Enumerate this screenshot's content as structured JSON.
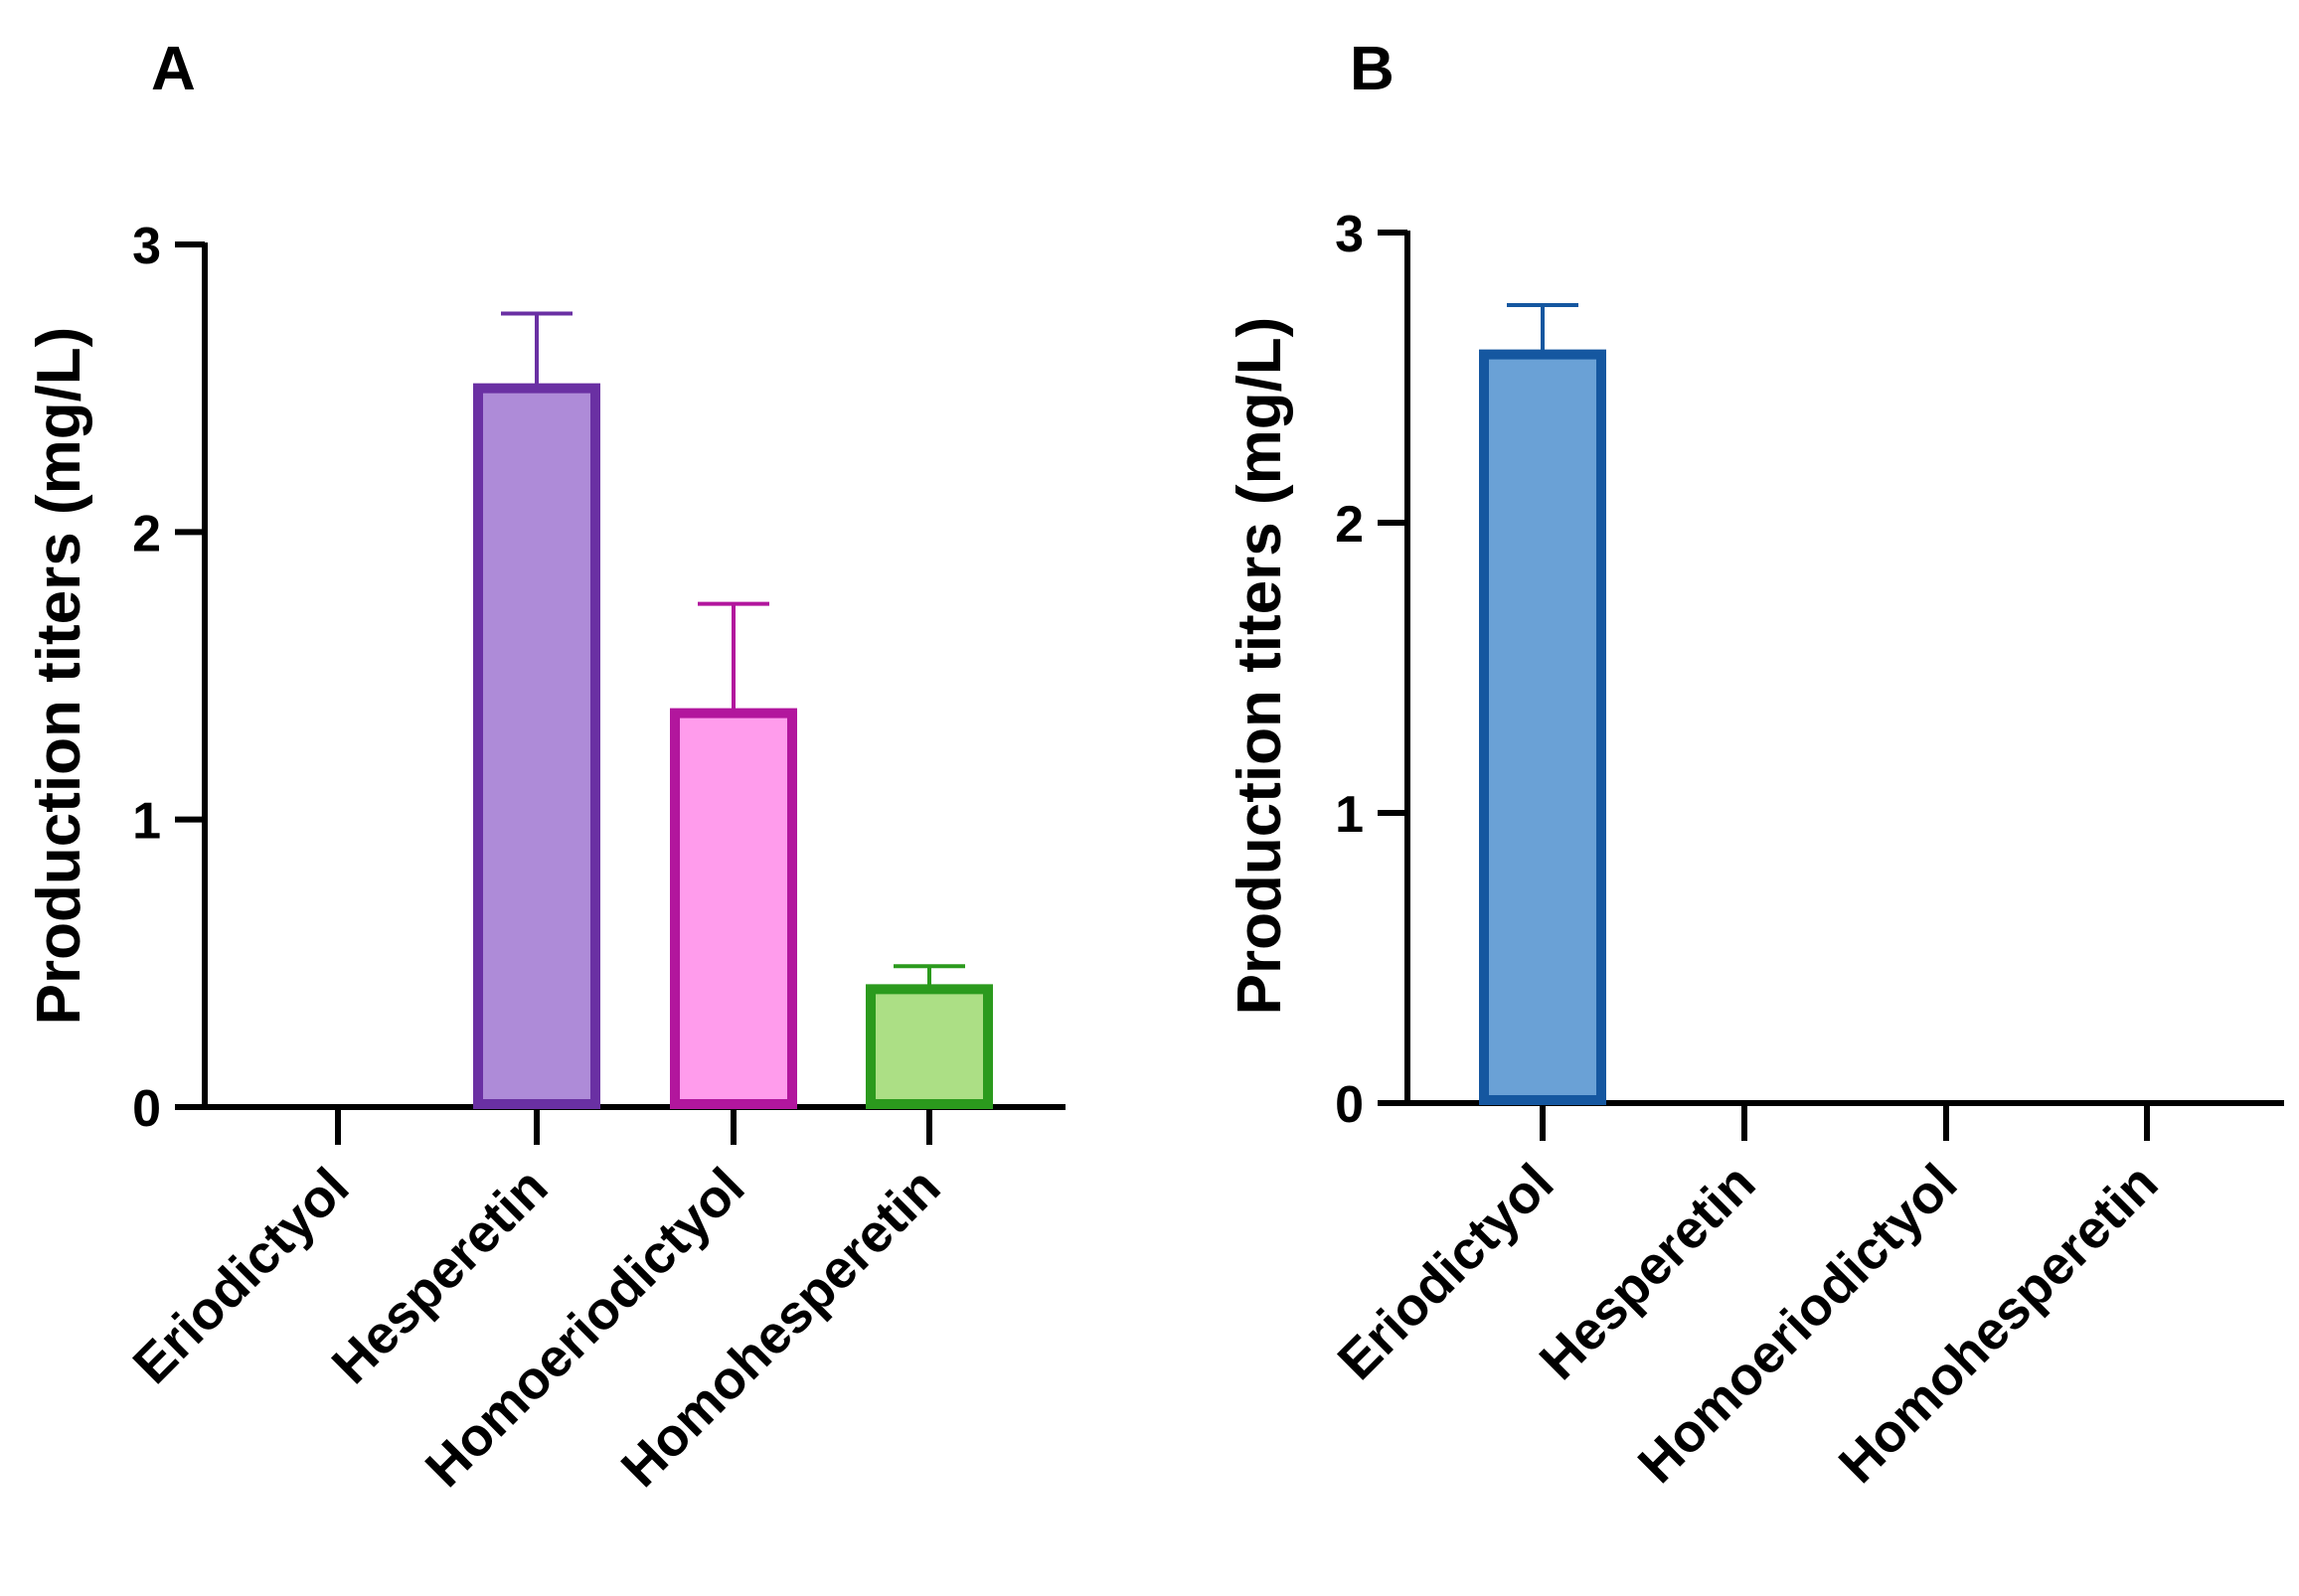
{
  "chart_data": [
    {
      "panel": "A",
      "type": "bar",
      "title": "",
      "xlabel": "",
      "ylabel": "Production titers (mg/L)",
      "ylim": [
        0,
        3
      ],
      "yticks": [
        "0",
        "1",
        "2",
        "3"
      ],
      "categories": [
        "Eriodictyol",
        "Hesperetin",
        "Homoeriodictyol",
        "Homohesperetin"
      ],
      "values": [
        0,
        2.5,
        1.37,
        0.41
      ],
      "errors": [
        0,
        0.26,
        0.38,
        0.08
      ],
      "fill_colors": [
        "#ffffff",
        "#ae8bd8",
        "#ff9cec",
        "#acdf85"
      ],
      "edge_colors": [
        "#000000",
        "#6a30a3",
        "#b2169d",
        "#2b9a1d"
      ],
      "grid": false
    },
    {
      "panel": "B",
      "type": "bar",
      "title": "",
      "xlabel": "",
      "ylabel": "Production titers (mg/L)",
      "ylim": [
        0,
        3
      ],
      "yticks": [
        "0",
        "1",
        "2",
        "3"
      ],
      "categories": [
        "Eriodictyol",
        "Hesperetin",
        "Homoeriodictyol",
        "Homohesperetin"
      ],
      "values": [
        2.58,
        0,
        0,
        0
      ],
      "errors": [
        0.17,
        0,
        0,
        0
      ],
      "fill_colors": [
        "#6aa1d6",
        "#ffffff",
        "#ffffff",
        "#ffffff"
      ],
      "edge_colors": [
        "#1557a0",
        "#000000",
        "#000000",
        "#000000"
      ],
      "grid": false
    }
  ]
}
